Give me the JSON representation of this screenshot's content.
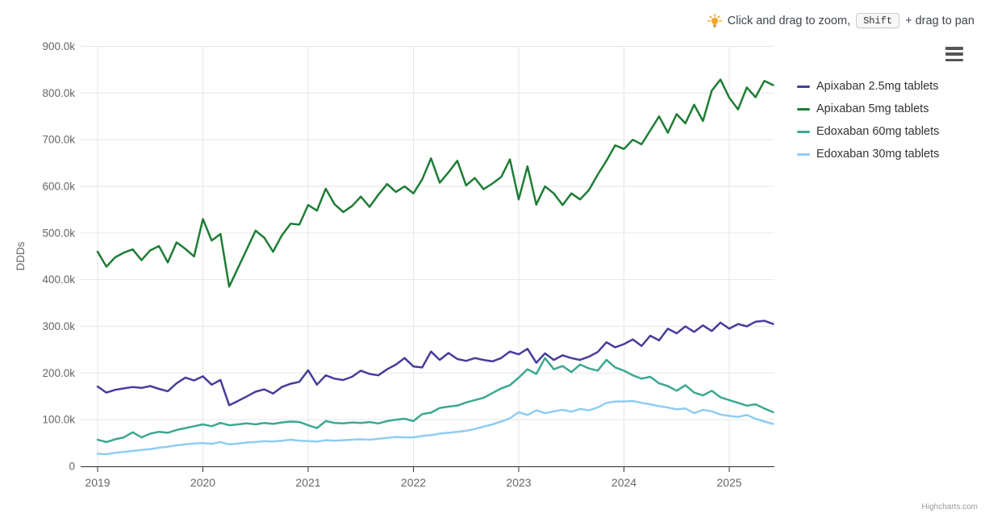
{
  "hint": {
    "icon": "lightbulb-icon",
    "text_before": "Click and drag to zoom,",
    "key_label": "Shift",
    "text_after": "+ drag to pan"
  },
  "export_menu": {
    "icon": "hamburger-menu-icon",
    "tooltip": "Chart context menu"
  },
  "credits": {
    "label": "Highcharts.com"
  },
  "colors": {
    "axis_label": "#666666",
    "axis_title": "#666666",
    "grid": "#e6e6e6",
    "axis_line": "#333333",
    "legend_text": "#333333",
    "hint_text": "#404552",
    "bulb": "#f5a623",
    "background": "#ffffff"
  },
  "chart_data": {
    "type": "line",
    "title": "",
    "xlabel": "",
    "ylabel": "DDDs",
    "x_unit": "month",
    "x_range": [
      "2019-01",
      "2025-06"
    ],
    "x_tick_labels": [
      "2019",
      "2020",
      "2021",
      "2022",
      "2023",
      "2024",
      "2025"
    ],
    "y_ticks_thousands": [
      0,
      100,
      200,
      300,
      400,
      500,
      600,
      700,
      800,
      900
    ],
    "y_tick_labels": [
      "0",
      "100.0k",
      "200.0k",
      "300.0k",
      "400.0k",
      "500.0k",
      "600.0k",
      "700.0k",
      "800.0k",
      "900.0k"
    ],
    "ylim_thousands": [
      0,
      900
    ],
    "values_unit": "thousands of DDDs, monthly from 2019-01 to 2025-06",
    "grid": true,
    "legend_position": "right",
    "series": [
      {
        "name": "Apixaban 2.5mg tablets",
        "color": "#463d9b",
        "values": [
          171,
          158,
          164,
          167,
          170,
          168,
          172,
          166,
          161,
          178,
          190,
          184,
          193,
          175,
          185,
          131,
          140,
          150,
          160,
          165,
          156,
          170,
          177,
          181,
          206,
          175,
          195,
          188,
          185,
          192,
          205,
          198,
          195,
          208,
          218,
          232,
          214,
          212,
          246,
          228,
          243,
          230,
          226,
          232,
          228,
          225,
          232,
          246,
          240,
          252,
          222,
          242,
          228,
          238,
          232,
          228,
          235,
          245,
          266,
          255,
          262,
          272,
          258,
          280,
          270,
          295,
          285,
          300,
          288,
          302,
          290,
          308,
          295,
          305,
          300,
          310,
          312,
          305
        ]
      },
      {
        "name": "Apixaban 5mg tablets",
        "color": "#1e7d35",
        "values": [
          460,
          428,
          448,
          458,
          465,
          442,
          463,
          472,
          437,
          480,
          466,
          450,
          530,
          484,
          498,
          385,
          425,
          465,
          505,
          490,
          460,
          495,
          520,
          518,
          560,
          548,
          595,
          562,
          545,
          558,
          578,
          556,
          582,
          605,
          588,
          600,
          585,
          615,
          660,
          608,
          630,
          655,
          602,
          618,
          594,
          606,
          620,
          658,
          572,
          643,
          561,
          600,
          585,
          560,
          585,
          572,
          592,
          625,
          655,
          688,
          680,
          700,
          690,
          720,
          750,
          715,
          755,
          735,
          775,
          740,
          805,
          829,
          790,
          765,
          812,
          791,
          826,
          817
        ]
      },
      {
        "name": "Edoxaban 60mg tablets",
        "color": "#3ca890",
        "values": [
          57,
          52,
          58,
          62,
          73,
          62,
          70,
          74,
          72,
          78,
          82,
          86,
          90,
          86,
          93,
          88,
          90,
          92,
          90,
          93,
          91,
          94,
          96,
          95,
          88,
          82,
          97,
          93,
          92,
          94,
          93,
          95,
          92,
          97,
          100,
          102,
          97,
          112,
          115,
          125,
          128,
          130,
          137,
          142,
          147,
          157,
          167,
          174,
          190,
          208,
          198,
          232,
          208,
          215,
          202,
          218,
          210,
          205,
          228,
          212,
          205,
          195,
          188,
          192,
          178,
          172,
          162,
          174,
          158,
          152,
          162,
          148,
          142,
          136,
          130,
          133,
          124,
          116
        ]
      },
      {
        "name": "Edoxaban 30mg tablets",
        "color": "#8ecdf1",
        "values": [
          27,
          26,
          29,
          31,
          33,
          35,
          37,
          40,
          42,
          45,
          47,
          49,
          50,
          48,
          52,
          47,
          49,
          51,
          52,
          54,
          53,
          55,
          57,
          55,
          54,
          53,
          56,
          55,
          56,
          57,
          58,
          57,
          59,
          61,
          63,
          62,
          62,
          65,
          67,
          70,
          72,
          74,
          76,
          80,
          85,
          90,
          96,
          103,
          116,
          110,
          120,
          114,
          118,
          121,
          117,
          123,
          120,
          126,
          136,
          139,
          139,
          140,
          136,
          133,
          129,
          126,
          122,
          124,
          114,
          121,
          118,
          111,
          108,
          106,
          110,
          102,
          96,
          91
        ]
      }
    ]
  }
}
